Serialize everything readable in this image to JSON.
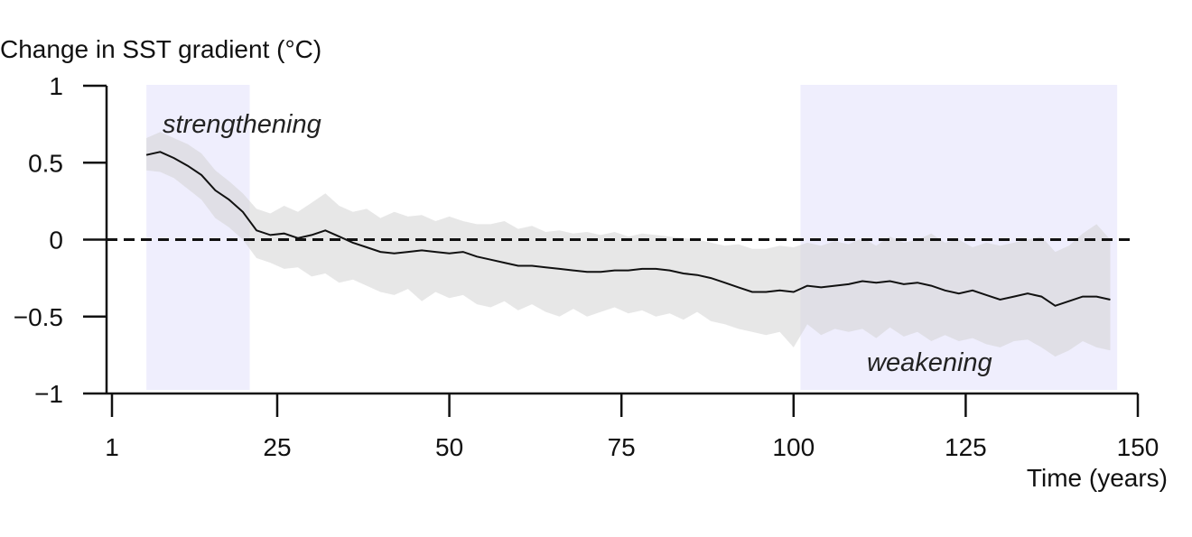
{
  "chart_data": {
    "type": "line",
    "title": "",
    "ylabel": "Change in SST gradient (°C)",
    "xlabel": "Time (years)",
    "xlim": [
      1,
      150
    ],
    "ylim": [
      -1,
      1
    ],
    "x_ticks": [
      1,
      25,
      50,
      75,
      100,
      125,
      150
    ],
    "x_tick_labels": [
      "1",
      "25",
      "50",
      "75",
      "100",
      "125",
      "150"
    ],
    "y_ticks": [
      1,
      0.5,
      0,
      -0.5,
      -1
    ],
    "y_tick_labels": [
      "1",
      "0.5",
      "0",
      "−0.5",
      "−1"
    ],
    "reference_line": {
      "y": 0,
      "style": "dashed"
    },
    "highlight_regions": [
      {
        "x_start": 6,
        "x_end": 21,
        "label": "strengthening",
        "color": "#efeefd"
      },
      {
        "x_start": 101,
        "x_end": 147,
        "label": "weakening",
        "color": "#efeefd"
      }
    ],
    "colors": {
      "line": "#111111",
      "band": "#d4d4d4",
      "region": "#eeeefc"
    },
    "grid": false,
    "series": [
      {
        "x": [
          6,
          8,
          10,
          12,
          14,
          16,
          18,
          20,
          22,
          24,
          26,
          28,
          30,
          32,
          34,
          36,
          38,
          40,
          42,
          44,
          46,
          48,
          50,
          52,
          54,
          56,
          58,
          60,
          62,
          64,
          66,
          68,
          70,
          72,
          74,
          76,
          78,
          80,
          82,
          84,
          86,
          88,
          90,
          92,
          94,
          96,
          98,
          100,
          102,
          104,
          106,
          108,
          110,
          112,
          114,
          116,
          118,
          120,
          122,
          124,
          126,
          128,
          130,
          132,
          134,
          136,
          138,
          140,
          142,
          144,
          146
        ],
        "y": [
          0.55,
          0.57,
          0.53,
          0.48,
          0.42,
          0.32,
          0.26,
          0.18,
          0.06,
          0.03,
          0.04,
          0.01,
          0.03,
          0.06,
          0.02,
          -0.02,
          -0.05,
          -0.08,
          -0.09,
          -0.08,
          -0.07,
          -0.08,
          -0.09,
          -0.08,
          -0.11,
          -0.13,
          -0.15,
          -0.17,
          -0.17,
          -0.18,
          -0.19,
          -0.2,
          -0.21,
          -0.21,
          -0.2,
          -0.2,
          -0.19,
          -0.19,
          -0.2,
          -0.22,
          -0.23,
          -0.25,
          -0.28,
          -0.31,
          -0.34,
          -0.34,
          -0.33,
          -0.34,
          -0.3,
          -0.31,
          -0.3,
          -0.29,
          -0.27,
          -0.28,
          -0.27,
          -0.29,
          -0.28,
          -0.3,
          -0.33,
          -0.35,
          -0.33,
          -0.36,
          -0.39,
          -0.37,
          -0.35,
          -0.37,
          -0.43,
          -0.4,
          -0.37,
          -0.37,
          -0.39
        ],
        "upper": [
          0.66,
          0.7,
          0.66,
          0.62,
          0.56,
          0.45,
          0.38,
          0.3,
          0.2,
          0.17,
          0.22,
          0.18,
          0.24,
          0.3,
          0.22,
          0.18,
          0.2,
          0.14,
          0.18,
          0.15,
          0.16,
          0.12,
          0.15,
          0.12,
          0.1,
          0.1,
          0.12,
          0.07,
          0.09,
          0.05,
          0.06,
          0.04,
          0.05,
          0.03,
          0.05,
          0.02,
          0.04,
          0.03,
          0.02,
          0.01,
          0.0,
          -0.02,
          -0.04,
          -0.03,
          -0.06,
          -0.06,
          -0.04,
          -0.05,
          -0.02,
          -0.04,
          -0.01,
          -0.03,
          0.01,
          -0.04,
          0.02,
          -0.02,
          0.0,
          0.04,
          -0.02,
          0.0,
          -0.05,
          -0.02,
          -0.04,
          -0.02,
          0.0,
          0.02,
          -0.08,
          -0.04,
          0.04,
          0.1,
          0.0
        ],
        "lower": [
          0.45,
          0.44,
          0.4,
          0.33,
          0.26,
          0.14,
          0.08,
          0.0,
          -0.12,
          -0.15,
          -0.19,
          -0.18,
          -0.24,
          -0.22,
          -0.28,
          -0.26,
          -0.3,
          -0.34,
          -0.36,
          -0.32,
          -0.4,
          -0.34,
          -0.38,
          -0.36,
          -0.42,
          -0.44,
          -0.4,
          -0.46,
          -0.42,
          -0.47,
          -0.5,
          -0.45,
          -0.5,
          -0.47,
          -0.44,
          -0.48,
          -0.46,
          -0.5,
          -0.48,
          -0.52,
          -0.47,
          -0.53,
          -0.55,
          -0.58,
          -0.6,
          -0.62,
          -0.6,
          -0.7,
          -0.55,
          -0.62,
          -0.58,
          -0.6,
          -0.58,
          -0.64,
          -0.57,
          -0.63,
          -0.6,
          -0.66,
          -0.62,
          -0.66,
          -0.64,
          -0.68,
          -0.7,
          -0.66,
          -0.65,
          -0.7,
          -0.76,
          -0.72,
          -0.66,
          -0.7,
          -0.72
        ]
      }
    ]
  }
}
